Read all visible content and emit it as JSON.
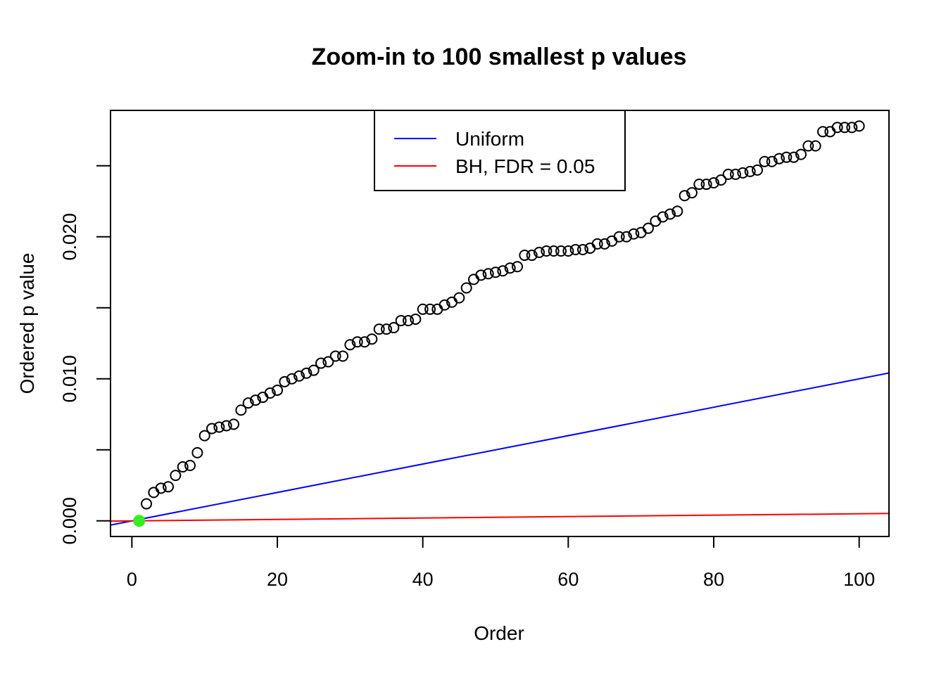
{
  "chart_data": {
    "type": "scatter",
    "title": "Zoom-in to 100 smallest p values",
    "xlabel": "Order",
    "ylabel": "Ordered p value",
    "xlim": [
      -2.94,
      104.1
    ],
    "ylim": [
      -0.0011,
      0.0289
    ],
    "x_ticks": [
      0,
      20,
      40,
      60,
      80,
      100
    ],
    "x_tick_labels": [
      "0",
      "20",
      "40",
      "60",
      "80",
      "100"
    ],
    "y_ticks": [
      0,
      0.005,
      0.01,
      0.015,
      0.02,
      0.025
    ],
    "y_tick_labels": [
      "0.000",
      "",
      "0.010",
      "",
      "0.020",
      ""
    ],
    "grid": false,
    "legend_position": "top-center",
    "legend": [
      {
        "label": "Uniform",
        "color": "#0000ff"
      },
      {
        "label": "BH, FDR = 0.05",
        "color": "#ff0000"
      }
    ],
    "series": [
      {
        "name": "Ordered p value",
        "marker": "open-circle",
        "color": "#000000",
        "x": [
          1,
          2,
          3,
          4,
          5,
          6,
          7,
          8,
          9,
          10,
          11,
          12,
          13,
          14,
          15,
          16,
          17,
          18,
          19,
          20,
          21,
          22,
          23,
          24,
          25,
          26,
          27,
          28,
          29,
          30,
          31,
          32,
          33,
          34,
          35,
          36,
          37,
          38,
          39,
          40,
          41,
          42,
          43,
          44,
          45,
          46,
          47,
          48,
          49,
          50,
          51,
          52,
          53,
          54,
          55,
          56,
          57,
          58,
          59,
          60,
          61,
          62,
          63,
          64,
          65,
          66,
          67,
          68,
          69,
          70,
          71,
          72,
          73,
          74,
          75,
          76,
          77,
          78,
          79,
          80,
          81,
          82,
          83,
          84,
          85,
          86,
          87,
          88,
          89,
          90,
          91,
          92,
          93,
          94,
          95,
          96,
          97,
          98,
          99,
          100
        ],
        "y": [
          0.0,
          0.0012,
          0.002,
          0.0023,
          0.0024,
          0.0032,
          0.0038,
          0.0039,
          0.0048,
          0.006,
          0.0065,
          0.0066,
          0.0067,
          0.0068,
          0.0078,
          0.0083,
          0.0085,
          0.0087,
          0.009,
          0.0092,
          0.0098,
          0.01,
          0.0102,
          0.0104,
          0.0106,
          0.0111,
          0.0112,
          0.0116,
          0.0116,
          0.0124,
          0.0126,
          0.0126,
          0.0128,
          0.0135,
          0.0135,
          0.0136,
          0.0141,
          0.0141,
          0.0142,
          0.0149,
          0.0149,
          0.0149,
          0.0152,
          0.0154,
          0.0157,
          0.0164,
          0.017,
          0.0173,
          0.0174,
          0.0175,
          0.0176,
          0.0178,
          0.0179,
          0.0187,
          0.0187,
          0.0189,
          0.019,
          0.019,
          0.019,
          0.019,
          0.0191,
          0.0191,
          0.0192,
          0.0195,
          0.0195,
          0.0197,
          0.02,
          0.02,
          0.0202,
          0.0203,
          0.0206,
          0.0211,
          0.0214,
          0.0216,
          0.0218,
          0.0229,
          0.0231,
          0.0237,
          0.0237,
          0.0238,
          0.024,
          0.0244,
          0.0244,
          0.0245,
          0.0246,
          0.0247,
          0.0253,
          0.0253,
          0.0255,
          0.0256,
          0.0256,
          0.0258,
          0.0264,
          0.0264,
          0.0274,
          0.0274,
          0.0277,
          0.0277,
          0.0277,
          0.0278
        ]
      },
      {
        "name": "Uniform",
        "type": "line",
        "color": "#0000ff",
        "slope": 0.0001,
        "intercept": 0
      },
      {
        "name": "BH, FDR = 0.05",
        "type": "line",
        "color": "#ff0000",
        "slope": 5e-06,
        "intercept": 0
      }
    ],
    "highlight": {
      "x": 1,
      "y": 0.0,
      "color": "#33ee22"
    }
  }
}
